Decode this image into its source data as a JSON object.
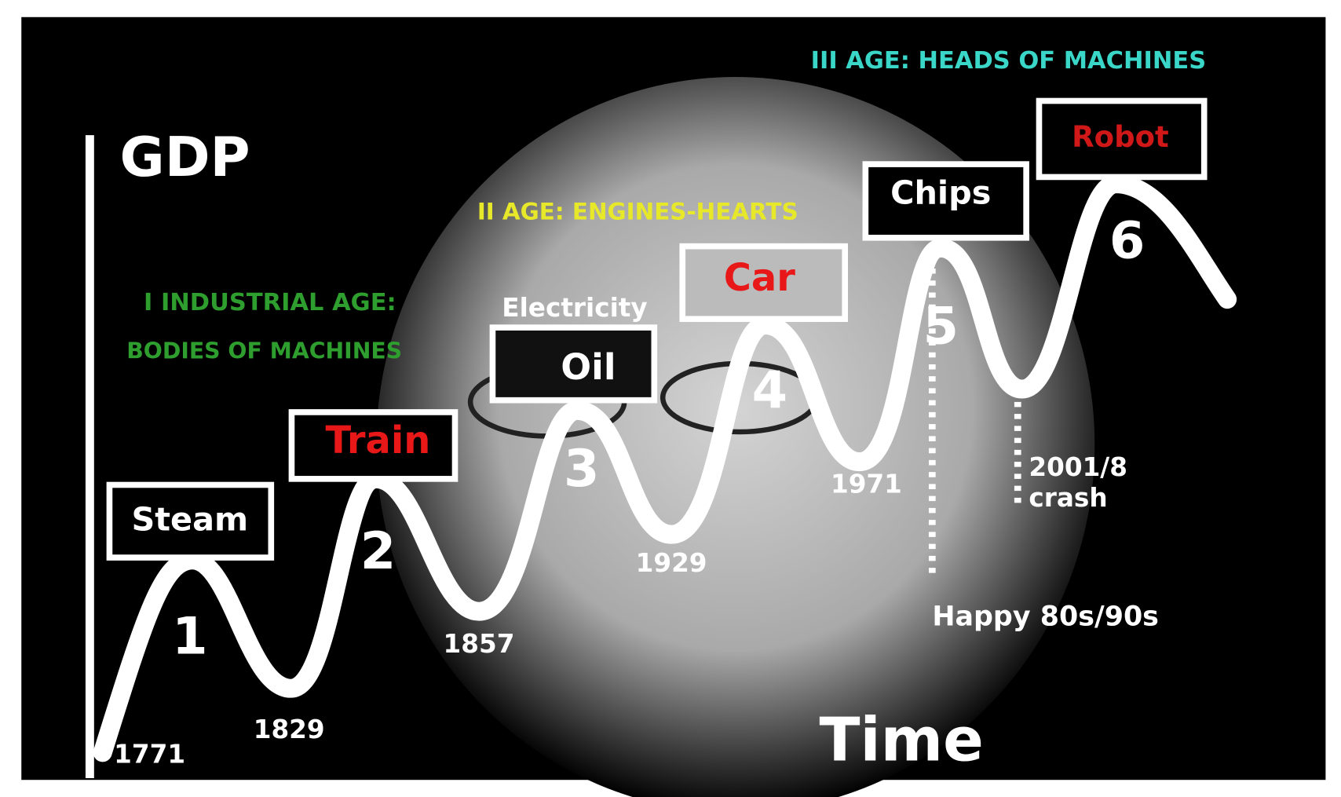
{
  "axes": {
    "y_label": "GDP",
    "x_label": "Time"
  },
  "ages": [
    {
      "lines": [
        "I INDUSTRIAL  AGE:",
        "BODIES OF MACHINES"
      ]
    },
    {
      "lines": [
        "II AGE: ENGINES-HEARTS"
      ]
    },
    {
      "lines": [
        "III AGE: HEADS OF MACHINES"
      ]
    }
  ],
  "boxes": [
    "Steam",
    "Train",
    "Oil",
    "Car",
    "Chips",
    "Robot"
  ],
  "wave_numbers": [
    "1",
    "2",
    "3",
    "4",
    "5",
    "6"
  ],
  "years": [
    "1771",
    "1829",
    "1857",
    "1929",
    "1971"
  ],
  "annotations": {
    "electricity": "Electricity",
    "happy": "Happy 80s/90s",
    "crash_year": "2001/8",
    "crash": "crash"
  }
}
